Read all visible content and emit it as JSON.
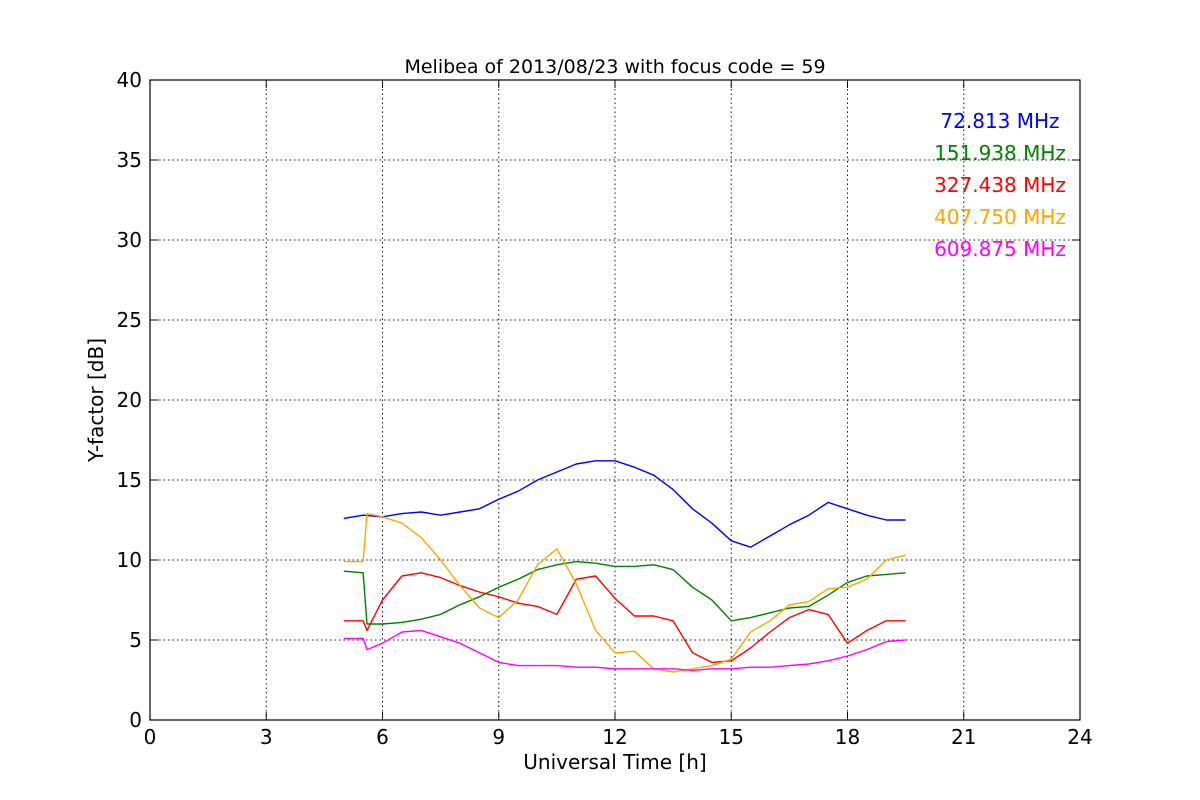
{
  "chart_data": {
    "type": "line",
    "title": "Melibea of 2013/08/23 with focus code = 59",
    "xlabel": "Universal Time [h]",
    "ylabel": "Y-factor [dB]",
    "xlim": [
      0,
      24
    ],
    "ylim": [
      0,
      40
    ],
    "xticks": [
      "0",
      "3",
      "6",
      "9",
      "12",
      "15",
      "18",
      "21",
      "24"
    ],
    "yticks": [
      "0",
      "5",
      "10",
      "15",
      "20",
      "25",
      "30",
      "35",
      "40"
    ],
    "grid": true,
    "legend_placement": "top-right",
    "series": [
      {
        "name": "72.813 MHz",
        "color": "#0000ff",
        "points": [
          [
            5.0,
            12.6
          ],
          [
            5.5,
            12.8
          ],
          [
            6.0,
            12.7
          ],
          [
            6.5,
            12.9
          ],
          [
            7.0,
            13.0
          ],
          [
            7.5,
            12.8
          ],
          [
            8.0,
            13.0
          ],
          [
            8.5,
            13.2
          ],
          [
            9.0,
            13.8
          ],
          [
            9.5,
            14.3
          ],
          [
            10.0,
            15.0
          ],
          [
            10.5,
            15.5
          ],
          [
            11.0,
            16.0
          ],
          [
            11.5,
            16.2
          ],
          [
            12.0,
            16.2
          ],
          [
            12.5,
            15.8
          ],
          [
            13.0,
            15.3
          ],
          [
            13.5,
            14.4
          ],
          [
            14.0,
            13.2
          ],
          [
            14.5,
            12.3
          ],
          [
            15.0,
            11.2
          ],
          [
            15.5,
            10.8
          ],
          [
            16.0,
            11.5
          ],
          [
            16.5,
            12.2
          ],
          [
            17.0,
            12.8
          ],
          [
            17.5,
            13.6
          ],
          [
            18.0,
            13.2
          ],
          [
            18.5,
            12.8
          ],
          [
            19.0,
            12.5
          ],
          [
            19.5,
            12.5
          ]
        ]
      },
      {
        "name": "151.938 MHz",
        "color": "#008000",
        "points": [
          [
            5.0,
            9.3
          ],
          [
            5.5,
            9.2
          ],
          [
            5.6,
            6.0
          ],
          [
            6.0,
            6.0
          ],
          [
            6.5,
            6.1
          ],
          [
            7.0,
            6.3
          ],
          [
            7.5,
            6.6
          ],
          [
            8.0,
            7.2
          ],
          [
            8.5,
            7.7
          ],
          [
            9.0,
            8.3
          ],
          [
            9.5,
            8.8
          ],
          [
            10.0,
            9.4
          ],
          [
            10.5,
            9.7
          ],
          [
            11.0,
            9.9
          ],
          [
            11.5,
            9.8
          ],
          [
            12.0,
            9.6
          ],
          [
            12.5,
            9.6
          ],
          [
            13.0,
            9.7
          ],
          [
            13.5,
            9.4
          ],
          [
            14.0,
            8.3
          ],
          [
            14.5,
            7.5
          ],
          [
            15.0,
            6.2
          ],
          [
            15.5,
            6.4
          ],
          [
            16.0,
            6.7
          ],
          [
            16.5,
            7.0
          ],
          [
            17.0,
            7.1
          ],
          [
            17.5,
            7.8
          ],
          [
            18.0,
            8.6
          ],
          [
            18.5,
            9.0
          ],
          [
            19.0,
            9.1
          ],
          [
            19.5,
            9.2
          ]
        ]
      },
      {
        "name": "327.438 MHz",
        "color": "#ff0000",
        "points": [
          [
            5.0,
            6.2
          ],
          [
            5.5,
            6.2
          ],
          [
            5.6,
            5.6
          ],
          [
            6.0,
            7.5
          ],
          [
            6.5,
            9.0
          ],
          [
            7.0,
            9.2
          ],
          [
            7.5,
            8.9
          ],
          [
            8.0,
            8.4
          ],
          [
            8.5,
            8.0
          ],
          [
            9.0,
            7.7
          ],
          [
            9.5,
            7.3
          ],
          [
            10.0,
            7.1
          ],
          [
            10.5,
            6.6
          ],
          [
            11.0,
            8.8
          ],
          [
            11.5,
            9.0
          ],
          [
            12.0,
            7.6
          ],
          [
            12.5,
            6.5
          ],
          [
            13.0,
            6.5
          ],
          [
            13.5,
            6.2
          ],
          [
            14.0,
            4.2
          ],
          [
            14.5,
            3.6
          ],
          [
            15.0,
            3.7
          ],
          [
            15.5,
            4.5
          ],
          [
            16.0,
            5.5
          ],
          [
            16.5,
            6.4
          ],
          [
            17.0,
            6.9
          ],
          [
            17.5,
            6.6
          ],
          [
            18.0,
            4.8
          ],
          [
            18.5,
            5.6
          ],
          [
            19.0,
            6.2
          ],
          [
            19.5,
            6.2
          ]
        ]
      },
      {
        "name": "407.750 MHz",
        "color": "#ffa500",
        "points": [
          [
            5.0,
            9.9
          ],
          [
            5.5,
            9.9
          ],
          [
            5.6,
            12.9
          ],
          [
            6.0,
            12.7
          ],
          [
            6.5,
            12.3
          ],
          [
            7.0,
            11.4
          ],
          [
            7.5,
            10.0
          ],
          [
            8.0,
            8.4
          ],
          [
            8.5,
            7.0
          ],
          [
            9.0,
            6.4
          ],
          [
            9.5,
            7.5
          ],
          [
            10.0,
            9.7
          ],
          [
            10.5,
            10.7
          ],
          [
            11.0,
            8.5
          ],
          [
            11.5,
            5.6
          ],
          [
            12.0,
            4.2
          ],
          [
            12.5,
            4.3
          ],
          [
            13.0,
            3.2
          ],
          [
            13.5,
            3.0
          ],
          [
            14.0,
            3.2
          ],
          [
            14.5,
            3.4
          ],
          [
            15.0,
            3.8
          ],
          [
            15.5,
            5.5
          ],
          [
            16.0,
            6.2
          ],
          [
            16.5,
            7.2
          ],
          [
            17.0,
            7.4
          ],
          [
            17.5,
            8.2
          ],
          [
            18.0,
            8.3
          ],
          [
            18.5,
            8.8
          ],
          [
            19.0,
            10.0
          ],
          [
            19.5,
            10.3
          ]
        ]
      },
      {
        "name": "609.875 MHz",
        "color": "#ff00ff",
        "points": [
          [
            5.0,
            5.1
          ],
          [
            5.5,
            5.1
          ],
          [
            5.6,
            4.4
          ],
          [
            6.0,
            4.8
          ],
          [
            6.5,
            5.5
          ],
          [
            7.0,
            5.6
          ],
          [
            7.5,
            5.2
          ],
          [
            8.0,
            4.8
          ],
          [
            8.5,
            4.2
          ],
          [
            9.0,
            3.6
          ],
          [
            9.5,
            3.4
          ],
          [
            10.0,
            3.4
          ],
          [
            10.5,
            3.4
          ],
          [
            11.0,
            3.3
          ],
          [
            11.5,
            3.3
          ],
          [
            12.0,
            3.2
          ],
          [
            12.5,
            3.2
          ],
          [
            13.0,
            3.2
          ],
          [
            13.5,
            3.2
          ],
          [
            14.0,
            3.1
          ],
          [
            14.5,
            3.2
          ],
          [
            15.0,
            3.2
          ],
          [
            15.5,
            3.3
          ],
          [
            16.0,
            3.3
          ],
          [
            16.5,
            3.4
          ],
          [
            17.0,
            3.5
          ],
          [
            17.5,
            3.7
          ],
          [
            18.0,
            4.0
          ],
          [
            18.5,
            4.4
          ],
          [
            19.0,
            4.9
          ],
          [
            19.5,
            5.0
          ]
        ]
      }
    ]
  }
}
